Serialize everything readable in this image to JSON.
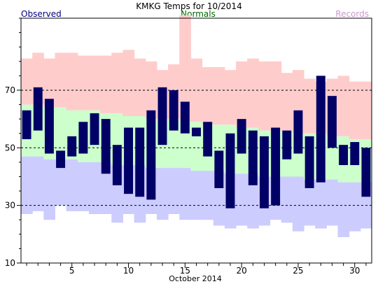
{
  "chart_data": {
    "type": "bar",
    "title": "KMKG Temps for 10/2014",
    "xlabel": "October 2014",
    "ylabel": "",
    "legend": {
      "observed": "Observed",
      "normals": "Normals",
      "records": "Records"
    },
    "colors": {
      "observed": "#000066",
      "observed_label": "#000080",
      "normals": "#ccffcc",
      "normals_label": "#006600",
      "records": "#ffcccc",
      "records_label": "#cc99cc",
      "normal_low": "#ccccff",
      "gridline": "#000000"
    },
    "days": [
      1,
      2,
      3,
      4,
      5,
      6,
      7,
      8,
      9,
      10,
      11,
      12,
      13,
      14,
      15,
      16,
      17,
      18,
      19,
      20,
      21,
      22,
      23,
      24,
      25,
      26,
      27,
      28,
      29,
      30,
      31
    ],
    "x_ticks": [
      5,
      10,
      15,
      20,
      25,
      30
    ],
    "y_ticks": [
      10,
      30,
      50,
      70
    ],
    "ylim": [
      10,
      95
    ],
    "xlim": [
      0.5,
      31.5
    ],
    "observed_high": [
      63,
      71,
      67,
      49,
      54,
      59,
      62,
      60,
      51,
      57,
      57,
      63,
      71,
      70,
      66,
      57,
      59,
      49,
      55,
      60,
      56,
      54,
      57,
      56,
      63,
      54,
      75,
      68,
      51,
      52,
      50
    ],
    "observed_low": [
      53,
      56,
      48,
      43,
      47,
      48,
      51,
      41,
      37,
      34,
      33,
      32,
      51,
      56,
      55,
      54,
      47,
      36,
      29,
      48,
      37,
      29,
      30,
      46,
      48,
      36,
      38,
      50,
      44,
      44,
      33
    ],
    "normal_high": [
      65,
      65,
      64,
      64,
      63,
      63,
      63,
      62,
      62,
      61,
      61,
      60,
      60,
      60,
      59,
      59,
      58,
      58,
      58,
      57,
      57,
      56,
      56,
      56,
      55,
      55,
      55,
      54,
      54,
      53,
      53
    ],
    "normal_low": [
      47,
      47,
      46,
      46,
      46,
      45,
      45,
      45,
      44,
      44,
      44,
      43,
      43,
      43,
      43,
      42,
      42,
      42,
      41,
      41,
      41,
      40,
      40,
      40,
      40,
      39,
      39,
      39,
      38,
      38,
      38
    ],
    "record_high": [
      81,
      83,
      81,
      83,
      83,
      82,
      82,
      82,
      83,
      84,
      81,
      80,
      77,
      79,
      96,
      81,
      78,
      78,
      77,
      80,
      81,
      80,
      80,
      76,
      77,
      74,
      73,
      74,
      75,
      73,
      73
    ],
    "record_low": [
      27,
      28,
      25,
      30,
      28,
      28,
      27,
      27,
      24,
      27,
      24,
      27,
      25,
      27,
      25,
      25,
      25,
      23,
      22,
      23,
      22,
      23,
      25,
      24,
      21,
      23,
      22,
      23,
      19,
      21,
      22
    ]
  }
}
